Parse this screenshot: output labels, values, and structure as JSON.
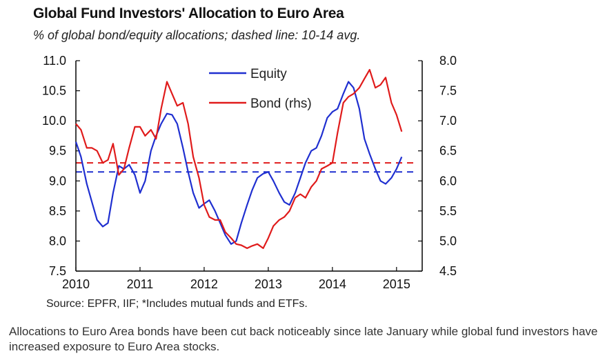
{
  "chart_data": {
    "type": "line",
    "title": "Global Fund  Investors' Allocation to Euro Area",
    "subtitle": "% of global bond/equity allocations; dashed line: 10-14 avg.",
    "source": "Source: EPFR, IIF; *Includes mutual funds and ETFs.",
    "xlim": [
      2010,
      2015.4
    ],
    "x_ticks": [
      "2010",
      "2011",
      "2012",
      "2013",
      "2014",
      "2015"
    ],
    "ylim_left": [
      7.5,
      11.0
    ],
    "ylim_right": [
      4.5,
      8.0
    ],
    "left_ticks": [
      "7.5",
      "8.0",
      "8.5",
      "9.0",
      "9.5",
      "10.0",
      "10.5",
      "11.0"
    ],
    "right_ticks": [
      "4.5",
      "5.0",
      "5.5",
      "6.0",
      "6.5",
      "7.0",
      "7.5",
      "8.0"
    ],
    "legend_position": "top-center",
    "series": [
      {
        "name": "Equity",
        "axis": "left",
        "color": "#1f2fd0",
        "points": [
          [
            2010.0,
            9.65
          ],
          [
            2010.08,
            9.4
          ],
          [
            2010.17,
            8.95
          ],
          [
            2010.25,
            8.65
          ],
          [
            2010.33,
            8.35
          ],
          [
            2010.42,
            8.24
          ],
          [
            2010.5,
            8.3
          ],
          [
            2010.58,
            8.8
          ],
          [
            2010.67,
            9.25
          ],
          [
            2010.75,
            9.2
          ],
          [
            2010.83,
            9.27
          ],
          [
            2010.92,
            9.1
          ],
          [
            2011.0,
            8.8
          ],
          [
            2011.08,
            9.0
          ],
          [
            2011.17,
            9.5
          ],
          [
            2011.25,
            9.75
          ],
          [
            2011.33,
            9.95
          ],
          [
            2011.42,
            10.12
          ],
          [
            2011.5,
            10.1
          ],
          [
            2011.58,
            9.95
          ],
          [
            2011.67,
            9.55
          ],
          [
            2011.75,
            9.15
          ],
          [
            2011.83,
            8.8
          ],
          [
            2011.92,
            8.55
          ],
          [
            2012.0,
            8.62
          ],
          [
            2012.08,
            8.68
          ],
          [
            2012.17,
            8.5
          ],
          [
            2012.25,
            8.3
          ],
          [
            2012.33,
            8.1
          ],
          [
            2012.42,
            7.95
          ],
          [
            2012.5,
            8.0
          ],
          [
            2012.58,
            8.3
          ],
          [
            2012.67,
            8.6
          ],
          [
            2012.75,
            8.85
          ],
          [
            2012.83,
            9.05
          ],
          [
            2012.92,
            9.12
          ],
          [
            2013.0,
            9.15
          ],
          [
            2013.08,
            9.0
          ],
          [
            2013.17,
            8.8
          ],
          [
            2013.25,
            8.65
          ],
          [
            2013.33,
            8.6
          ],
          [
            2013.42,
            8.8
          ],
          [
            2013.5,
            9.05
          ],
          [
            2013.58,
            9.3
          ],
          [
            2013.67,
            9.5
          ],
          [
            2013.75,
            9.55
          ],
          [
            2013.83,
            9.75
          ],
          [
            2013.92,
            10.05
          ],
          [
            2014.0,
            10.15
          ],
          [
            2014.08,
            10.2
          ],
          [
            2014.17,
            10.45
          ],
          [
            2014.25,
            10.65
          ],
          [
            2014.33,
            10.55
          ],
          [
            2014.42,
            10.2
          ],
          [
            2014.5,
            9.7
          ],
          [
            2014.58,
            9.45
          ],
          [
            2014.67,
            9.2
          ],
          [
            2014.75,
            9.0
          ],
          [
            2014.83,
            8.95
          ],
          [
            2014.92,
            9.05
          ],
          [
            2015.0,
            9.2
          ],
          [
            2015.08,
            9.4
          ]
        ],
        "avg": 9.15
      },
      {
        "name": "Bond (rhs)",
        "axis": "right",
        "color": "#e01b1b",
        "points": [
          [
            2010.0,
            6.95
          ],
          [
            2010.08,
            6.85
          ],
          [
            2010.17,
            6.55
          ],
          [
            2010.25,
            6.55
          ],
          [
            2010.33,
            6.5
          ],
          [
            2010.42,
            6.3
          ],
          [
            2010.5,
            6.35
          ],
          [
            2010.58,
            6.62
          ],
          [
            2010.67,
            6.1
          ],
          [
            2010.75,
            6.2
          ],
          [
            2010.83,
            6.55
          ],
          [
            2010.92,
            6.9
          ],
          [
            2011.0,
            6.9
          ],
          [
            2011.08,
            6.75
          ],
          [
            2011.17,
            6.85
          ],
          [
            2011.25,
            6.7
          ],
          [
            2011.33,
            7.2
          ],
          [
            2011.42,
            7.65
          ],
          [
            2011.5,
            7.45
          ],
          [
            2011.58,
            7.25
          ],
          [
            2011.67,
            7.3
          ],
          [
            2011.75,
            6.95
          ],
          [
            2011.83,
            6.4
          ],
          [
            2011.92,
            6.05
          ],
          [
            2012.0,
            5.6
          ],
          [
            2012.08,
            5.4
          ],
          [
            2012.17,
            5.35
          ],
          [
            2012.25,
            5.35
          ],
          [
            2012.33,
            5.15
          ],
          [
            2012.42,
            5.05
          ],
          [
            2012.5,
            4.95
          ],
          [
            2012.58,
            4.93
          ],
          [
            2012.67,
            4.88
          ],
          [
            2012.75,
            4.92
          ],
          [
            2012.83,
            4.95
          ],
          [
            2012.92,
            4.88
          ],
          [
            2013.0,
            5.05
          ],
          [
            2013.08,
            5.25
          ],
          [
            2013.17,
            5.35
          ],
          [
            2013.25,
            5.4
          ],
          [
            2013.33,
            5.5
          ],
          [
            2013.42,
            5.72
          ],
          [
            2013.5,
            5.78
          ],
          [
            2013.58,
            5.72
          ],
          [
            2013.67,
            5.9
          ],
          [
            2013.75,
            6.0
          ],
          [
            2013.83,
            6.2
          ],
          [
            2013.92,
            6.25
          ],
          [
            2014.0,
            6.3
          ],
          [
            2014.08,
            6.8
          ],
          [
            2014.17,
            7.3
          ],
          [
            2014.25,
            7.4
          ],
          [
            2014.33,
            7.45
          ],
          [
            2014.42,
            7.55
          ],
          [
            2014.5,
            7.7
          ],
          [
            2014.58,
            7.85
          ],
          [
            2014.67,
            7.55
          ],
          [
            2014.75,
            7.6
          ],
          [
            2014.83,
            7.72
          ],
          [
            2014.92,
            7.3
          ],
          [
            2015.0,
            7.1
          ],
          [
            2015.08,
            6.82
          ]
        ],
        "avg": 6.3
      }
    ]
  },
  "caption": "Allocations to Euro Area bonds have been cut back noticeably since late January while global fund investors have increased exposure to Euro Area stocks."
}
